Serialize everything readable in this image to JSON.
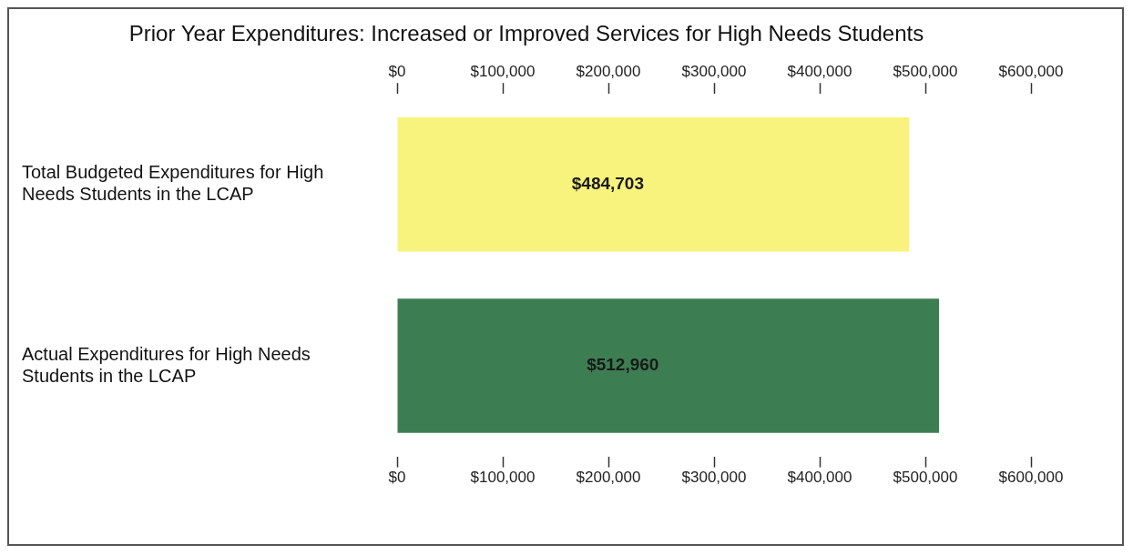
{
  "chart_data": {
    "type": "bar",
    "orientation": "horizontal",
    "title": "Prior Year Expenditures: Increased or Improved Services for High Needs Students",
    "categories": [
      "Total Budgeted Expenditures for High Needs Students in the LCAP",
      "Actual Expenditures for High Needs Students in the LCAP"
    ],
    "values": [
      484703,
      512960
    ],
    "colors": [
      "#f7f37c",
      "#3d7d52"
    ],
    "value_labels": [
      "$484,703",
      "$512,960"
    ],
    "xlim": [
      0,
      600000
    ],
    "xticks": [
      {
        "value": 0,
        "label": "$0"
      },
      {
        "value": 100000,
        "label": "$100,000"
      },
      {
        "value": 200000,
        "label": "$200,000"
      },
      {
        "value": 300000,
        "label": "$300,000"
      },
      {
        "value": 400000,
        "label": "$400,000"
      },
      {
        "value": 500000,
        "label": "$500,000"
      },
      {
        "value": 600000,
        "label": "$600,000"
      }
    ],
    "x2lim": [
      0,
      600000
    ],
    "x2ticks": [
      {
        "value": 0,
        "label": "$0"
      },
      {
        "value": 100000,
        "label": "$100,000"
      },
      {
        "value": 200000,
        "label": "$200,000"
      },
      {
        "value": 300000,
        "label": "$300,000"
      },
      {
        "value": 400000,
        "label": "$400,000"
      },
      {
        "value": 500000,
        "label": "$500,000"
      },
      {
        "value": 600000,
        "label": "$600,000"
      }
    ],
    "grid": false,
    "legend": false
  }
}
